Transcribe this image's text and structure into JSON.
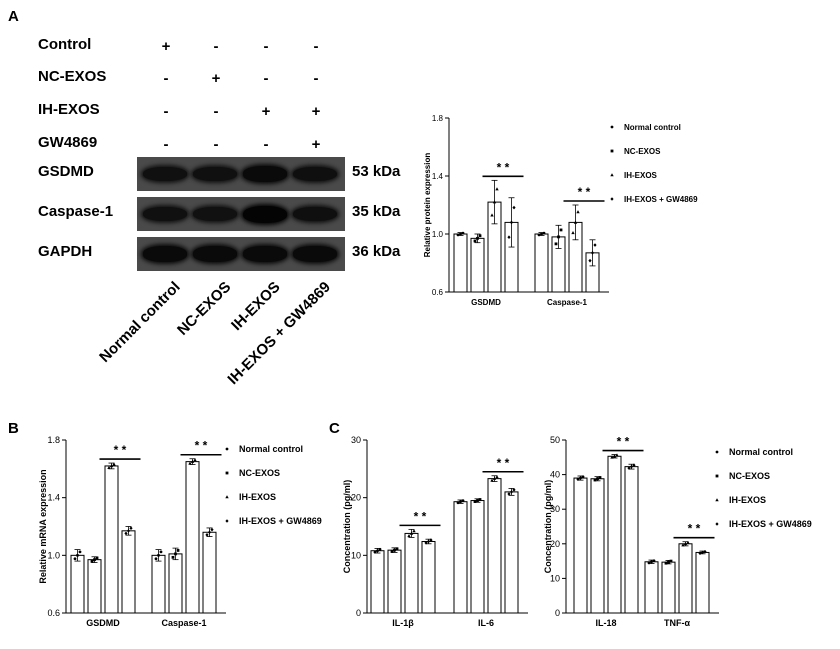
{
  "panel_labels": {
    "a": "A",
    "b": "B",
    "c": "C"
  },
  "treatment_table": {
    "rows": [
      {
        "label": "Control",
        "signs": [
          "+",
          "-",
          "-",
          "-"
        ]
      },
      {
        "label": "NC-EXOS",
        "signs": [
          "-",
          "+",
          "-",
          "-"
        ]
      },
      {
        "label": "IH-EXOS",
        "signs": [
          "-",
          "-",
          "+",
          "+"
        ]
      },
      {
        "label": "GW4869",
        "signs": [
          "-",
          "-",
          "-",
          "+"
        ]
      }
    ]
  },
  "blots": [
    {
      "protein": "GSDMD",
      "kda": "53 kDa",
      "intensity": [
        0.6,
        0.6,
        0.75,
        0.62
      ]
    },
    {
      "protein": "Caspase-1",
      "kda": "35 kDa",
      "intensity": [
        0.6,
        0.58,
        0.9,
        0.62
      ]
    },
    {
      "protein": "GAPDH",
      "kda": "36 kDa",
      "intensity": [
        0.75,
        0.75,
        0.75,
        0.75
      ]
    }
  ],
  "lane_labels": [
    "Normal control",
    "NC-EXOS",
    "IH-EXOS",
    "IH-EXOS + GW4869"
  ],
  "legend_entries": [
    "Normal control",
    "NC-EXOS",
    "IH-EXOS",
    "IH-EXOS + GW4869"
  ],
  "significance_mark": "*  *",
  "chart_data": [
    {
      "id": "protein",
      "type": "bar",
      "ylabel": "Relative protein expression",
      "ylim": [
        0.6,
        1.8
      ],
      "yticks": [
        "0.6",
        "1.0",
        "1.4",
        "1.8"
      ],
      "categories": [
        "GSDMD",
        "Caspase-1"
      ],
      "series": [
        {
          "name": "Normal control",
          "values": [
            1.0,
            1.0
          ],
          "err": [
            0.01,
            0.01
          ]
        },
        {
          "name": "NC-EXOS",
          "values": [
            0.97,
            0.98
          ],
          "err": [
            0.03,
            0.08
          ]
        },
        {
          "name": "IH-EXOS",
          "values": [
            1.22,
            1.08
          ],
          "err": [
            0.15,
            0.12
          ]
        },
        {
          "name": "IH-EXOS + GW4869",
          "values": [
            1.08,
            0.87
          ],
          "err": [
            0.17,
            0.09
          ]
        }
      ],
      "legend": "right"
    },
    {
      "id": "mrna",
      "type": "bar",
      "ylabel": "Relative mRNA expression",
      "ylim": [
        0.6,
        1.8
      ],
      "yticks": [
        "0.6",
        "1.0",
        "1.4",
        "1.8"
      ],
      "categories": [
        "GSDMD",
        "Caspase-1"
      ],
      "series": [
        {
          "name": "Normal control",
          "values": [
            1.0,
            1.0
          ],
          "err": [
            0.04,
            0.04
          ]
        },
        {
          "name": "NC-EXOS",
          "values": [
            0.97,
            1.01
          ],
          "err": [
            0.02,
            0.04
          ]
        },
        {
          "name": "IH-EXOS",
          "values": [
            1.62,
            1.65
          ],
          "err": [
            0.02,
            0.02
          ]
        },
        {
          "name": "IH-EXOS + GW4869",
          "values": [
            1.17,
            1.16
          ],
          "err": [
            0.03,
            0.03
          ]
        }
      ],
      "legend": "right"
    },
    {
      "id": "cytokine1",
      "type": "bar",
      "ylabel": "Concentration (pg/ml)",
      "ylim": [
        0,
        30
      ],
      "yticks": [
        "0",
        "10",
        "20",
        "30"
      ],
      "categories": [
        "IL-1β",
        "IL-6"
      ],
      "series": [
        {
          "name": "Normal control",
          "values": [
            10.8,
            19.3
          ],
          "err": [
            0.4,
            0.3
          ]
        },
        {
          "name": "NC-EXOS",
          "values": [
            10.9,
            19.5
          ],
          "err": [
            0.4,
            0.3
          ]
        },
        {
          "name": "IH-EXOS",
          "values": [
            13.8,
            23.3
          ],
          "err": [
            0.7,
            0.5
          ]
        },
        {
          "name": "IH-EXOS + GW4869",
          "values": [
            12.4,
            21.0
          ],
          "err": [
            0.4,
            0.6
          ]
        }
      ]
    },
    {
      "id": "cytokine2",
      "type": "bar",
      "ylabel": "Concentration (pg/ml)",
      "ylim": [
        0,
        50
      ],
      "yticks": [
        "0",
        "10",
        "20",
        "30",
        "40",
        "50"
      ],
      "categories": [
        "IL-18",
        "TNF-α"
      ],
      "series": [
        {
          "name": "Normal control",
          "values": [
            39.0,
            14.8
          ],
          "err": [
            0.6,
            0.5
          ]
        },
        {
          "name": "NC-EXOS",
          "values": [
            38.8,
            14.7
          ],
          "err": [
            0.6,
            0.5
          ]
        },
        {
          "name": "IH-EXOS",
          "values": [
            45.3,
            20.0
          ],
          "err": [
            0.5,
            0.6
          ]
        },
        {
          "name": "IH-EXOS + GW4869",
          "values": [
            42.3,
            17.5
          ],
          "err": [
            0.7,
            0.4
          ]
        }
      ],
      "legend": "right"
    }
  ]
}
